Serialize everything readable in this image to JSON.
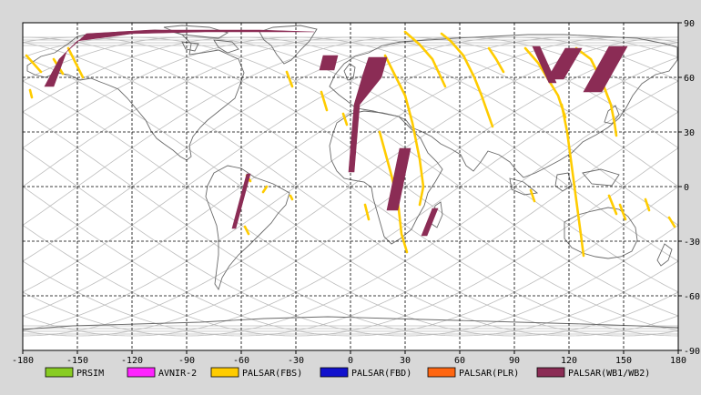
{
  "map": {
    "x_ticks": [
      "-180",
      "-150",
      "-120",
      "-90",
      "-60",
      "-30",
      "0",
      "30",
      "60",
      "90",
      "120",
      "150",
      "180"
    ],
    "y_ticks": [
      "90",
      "60",
      "30",
      "0",
      "-30",
      "-60",
      "-90"
    ],
    "colors": {
      "background": "#d8d8d8",
      "plot_background": "#ffffff",
      "coastline": "#6a6a6a",
      "orbit_track": "#bdbdbd",
      "grid": "#000000"
    }
  },
  "legend": {
    "items": [
      {
        "label": "PRSIM",
        "color": "#88cc22"
      },
      {
        "label": "AVNIR-2",
        "color": "#ff22ff"
      },
      {
        "label": "PALSAR(FBS)",
        "color": "#ffcc00"
      },
      {
        "label": "PALSAR(FBD)",
        "color": "#1111cc"
      },
      {
        "label": "PALSAR(PLR)",
        "color": "#ff6611"
      },
      {
        "label": "PALSAR(WB1/WB2)",
        "color": "#8b2c55"
      }
    ]
  },
  "observations": {
    "wb_color": "#8b2c55",
    "fbs_color": "#ffcc00",
    "wb_swaths": [
      {
        "pts": [
          [
            -168,
            55
          ],
          [
            -160,
            70
          ],
          [
            -150,
            80
          ],
          [
            -120,
            84
          ],
          [
            -80,
            85
          ],
          [
            -20,
            85
          ],
          [
            -50,
            86
          ],
          [
            -110,
            86
          ],
          [
            -145,
            84
          ],
          [
            -156,
            74
          ],
          [
            -163,
            55
          ]
        ]
      },
      {
        "pts": [
          [
            -57,
            7
          ],
          [
            -55,
            7
          ],
          [
            -63,
            -23
          ],
          [
            -65,
            -23
          ]
        ]
      },
      {
        "pts": [
          [
            -15,
            72
          ],
          [
            -7,
            72
          ],
          [
            -9,
            64
          ],
          [
            -17,
            64
          ]
        ]
      },
      {
        "pts": [
          [
            10,
            71
          ],
          [
            20,
            71
          ],
          [
            17,
            60
          ],
          [
            5,
            45
          ],
          [
            2,
            8
          ],
          [
            -1,
            8
          ],
          [
            2,
            45
          ],
          [
            7,
            62
          ]
        ]
      },
      {
        "pts": [
          [
            27,
            21
          ],
          [
            33,
            21
          ],
          [
            26,
            -13
          ],
          [
            20,
            -13
          ]
        ]
      },
      {
        "pts": [
          [
            45,
            -12
          ],
          [
            48,
            -12
          ],
          [
            42,
            -27
          ],
          [
            39,
            -27
          ]
        ]
      },
      {
        "pts": [
          [
            100,
            77
          ],
          [
            104,
            77
          ],
          [
            113,
            57
          ],
          [
            109,
            57
          ]
        ]
      },
      {
        "pts": [
          [
            118,
            76
          ],
          [
            127,
            76
          ],
          [
            117,
            59
          ],
          [
            108,
            59
          ]
        ]
      },
      {
        "pts": [
          [
            142,
            77
          ],
          [
            152,
            77
          ],
          [
            138,
            52
          ],
          [
            128,
            52
          ]
        ]
      }
    ],
    "fbs_tracks": [
      {
        "pts": [
          [
            -178,
            72
          ],
          [
            -170,
            63
          ]
        ]
      },
      {
        "pts": [
          [
            -155,
            76
          ],
          [
            -147,
            60
          ]
        ]
      },
      {
        "pts": [
          [
            -163,
            70
          ],
          [
            -158,
            62
          ]
        ]
      },
      {
        "pts": [
          [
            -176,
            53
          ],
          [
            -175,
            49
          ]
        ]
      },
      {
        "pts": [
          [
            -16,
            52
          ],
          [
            -13,
            42
          ]
        ]
      },
      {
        "pts": [
          [
            -4,
            40
          ],
          [
            -2,
            34
          ]
        ]
      },
      {
        "pts": [
          [
            -48,
            -3
          ],
          [
            -46,
            0
          ]
        ]
      },
      {
        "pts": [
          [
            -57,
            6
          ],
          [
            -55,
            3
          ]
        ]
      },
      {
        "pts": [
          [
            -58,
            -22
          ],
          [
            -56,
            -26
          ]
        ]
      },
      {
        "pts": [
          [
            -35,
            63
          ],
          [
            -32,
            55
          ]
        ]
      },
      {
        "pts": [
          [
            19,
            72
          ],
          [
            24,
            62
          ],
          [
            30,
            50
          ],
          [
            34,
            35
          ],
          [
            38,
            15
          ],
          [
            40,
            0
          ],
          [
            38,
            -10
          ]
        ]
      },
      {
        "pts": [
          [
            16,
            30
          ],
          [
            22,
            8
          ],
          [
            26,
            -8
          ],
          [
            28,
            -26
          ],
          [
            31,
            -36
          ]
        ]
      },
      {
        "pts": [
          [
            30,
            85
          ],
          [
            38,
            78
          ],
          [
            45,
            70
          ],
          [
            52,
            55
          ]
        ]
      },
      {
        "pts": [
          [
            50,
            84
          ],
          [
            55,
            80
          ],
          [
            62,
            72
          ],
          [
            68,
            60
          ],
          [
            72,
            50
          ],
          [
            78,
            33
          ]
        ]
      },
      {
        "pts": [
          [
            76,
            76
          ],
          [
            80,
            70
          ],
          [
            84,
            63
          ]
        ]
      },
      {
        "pts": [
          [
            96,
            76
          ],
          [
            103,
            68
          ],
          [
            114,
            50
          ],
          [
            118,
            38
          ]
        ]
      },
      {
        "pts": [
          [
            124,
            76
          ],
          [
            132,
            70
          ],
          [
            138,
            58
          ],
          [
            143,
            45
          ],
          [
            145,
            35
          ],
          [
            146,
            28
          ]
        ]
      },
      {
        "pts": [
          [
            116,
            45
          ],
          [
            119,
            30
          ],
          [
            121,
            15
          ],
          [
            123,
            0
          ],
          [
            125,
            -15
          ],
          [
            127,
            -30
          ],
          [
            128,
            -38
          ]
        ]
      },
      {
        "pts": [
          [
            8,
            -10
          ],
          [
            10,
            -18
          ]
        ]
      },
      {
        "pts": [
          [
            99,
            -2
          ],
          [
            101,
            -8
          ]
        ]
      },
      {
        "pts": [
          [
            142,
            -5
          ],
          [
            146,
            -15
          ]
        ]
      },
      {
        "pts": [
          [
            148,
            -10
          ],
          [
            151,
            -18
          ]
        ]
      },
      {
        "pts": [
          [
            162,
            -7
          ],
          [
            164,
            -13
          ]
        ]
      },
      {
        "pts": [
          [
            175,
            -17
          ],
          [
            178,
            -22
          ]
        ]
      },
      {
        "pts": [
          [
            -32,
            -7
          ],
          [
            -33,
            -5
          ]
        ]
      }
    ]
  }
}
